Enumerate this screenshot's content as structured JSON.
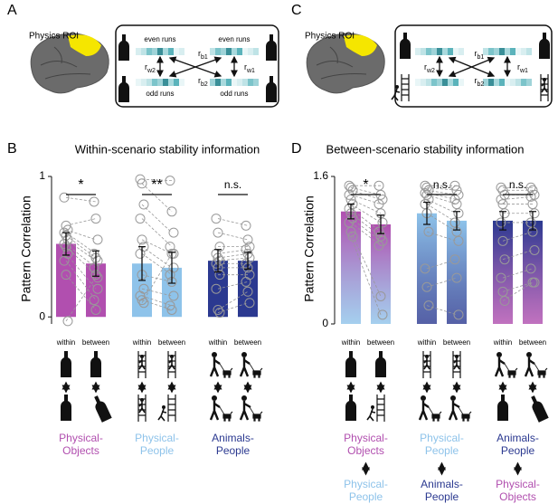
{
  "panel_labels": [
    "A",
    "B",
    "C",
    "D"
  ],
  "diagram_A": {
    "roi": "Physics ROI",
    "top_runs": [
      "even runs",
      "even runs"
    ],
    "bottom_runs": [
      "odd runs",
      "odd runs"
    ],
    "correlations": [
      {
        "base": "r",
        "sub": "w2"
      },
      {
        "base": "r",
        "sub": "b1"
      },
      {
        "base": "r",
        "sub": "b2"
      },
      {
        "base": "r",
        "sub": "w1"
      }
    ]
  },
  "diagram_C": {
    "roi": "Physics ROI",
    "correlations": [
      {
        "base": "r",
        "sub": "w2"
      },
      {
        "base": "r",
        "sub": "b1"
      },
      {
        "base": "r",
        "sub": "b2"
      },
      {
        "base": "r",
        "sub": "w1"
      }
    ]
  },
  "chart_data": [
    {
      "type": "bar",
      "title": "Within-scenario stability information",
      "ylabel": "Pattern Correlation",
      "ylim": [
        -0.05,
        1
      ],
      "yticks": [
        0,
        1
      ],
      "categories": [
        "within",
        "between"
      ],
      "groups": [
        {
          "name": "Physical-Objects",
          "color": "#b14faf",
          "significance": "*",
          "values": [
            0.52,
            0.38
          ],
          "errors": [
            0.08,
            0.09
          ],
          "points": [
            [
              0.85,
              0.65,
              0.62,
              0.6,
              0.58,
              0.55,
              0.52,
              0.5,
              0.45,
              0.4,
              0.3,
              -0.03
            ],
            [
              0.82,
              0.7,
              0.55,
              0.45,
              0.42,
              0.4,
              0.35,
              0.3,
              0.2,
              0.12,
              0.05,
              0.28
            ]
          ]
        },
        {
          "name": "Physical-People",
          "color": "#8ec3ea",
          "significance": "**",
          "values": [
            0.38,
            0.35
          ],
          "errors": [
            0.12,
            0.11
          ],
          "points": [
            [
              0.98,
              0.95,
              0.8,
              0.7,
              0.55,
              0.5,
              0.45,
              0.3,
              0.2,
              0.15,
              0.12,
              0.1
            ],
            [
              0.97,
              0.75,
              0.6,
              0.5,
              0.45,
              0.35,
              0.3,
              0.25,
              0.15,
              0.08,
              0.05,
              0.45
            ]
          ]
        },
        {
          "name": "Animals-People",
          "color": "#2b3990",
          "significance": "n.s.",
          "values": [
            0.4,
            0.4
          ],
          "errors": [
            0.08,
            0.06
          ],
          "points": [
            [
              0.7,
              0.6,
              0.5,
              0.45,
              0.42,
              0.4,
              0.38,
              0.35,
              0.3,
              0.2,
              0.05,
              0.03
            ],
            [
              0.65,
              0.55,
              0.5,
              0.48,
              0.45,
              0.42,
              0.38,
              0.35,
              0.3,
              0.25,
              0.18,
              0.1
            ]
          ]
        }
      ]
    },
    {
      "type": "bar",
      "title": "Between-scenario stability information",
      "ylabel": "Pattern Correlation",
      "ylim": [
        0,
        1.6
      ],
      "yticks": [
        0,
        1.6
      ],
      "categories": [
        "within",
        "between"
      ],
      "groups": [
        {
          "name": "Physical-Objects",
          "color": "#b14faf",
          "compare": "Physical-People",
          "compare_color": "#8ec3ea",
          "significance": "*",
          "values": [
            1.22,
            1.08
          ],
          "errors": [
            0.08,
            0.1
          ],
          "points": [
            [
              1.5,
              1.48,
              1.45,
              1.4,
              1.35,
              1.3,
              1.25,
              1.2,
              1.15,
              1.1,
              1.0,
              0.95
            ],
            [
              1.5,
              1.4,
              1.35,
              1.3,
              1.2,
              1.1,
              1.0,
              0.95,
              0.9,
              0.85,
              0.3,
              0.1
            ]
          ]
        },
        {
          "name": "Physical-People",
          "color": "#8ec3ea",
          "compare": "Animals-People",
          "compare_color": "#2b3990",
          "significance": "n.s.",
          "values": [
            1.2,
            1.12
          ],
          "errors": [
            0.12,
            0.1
          ],
          "points": [
            [
              1.5,
              1.48,
              1.45,
              1.42,
              1.4,
              1.35,
              1.3,
              1.2,
              1.0,
              0.6,
              0.4,
              0.2
            ],
            [
              1.5,
              1.45,
              1.4,
              1.35,
              1.3,
              1.2,
              1.1,
              1.0,
              0.9,
              0.7,
              0.5,
              0.1
            ]
          ]
        },
        {
          "name": "Animals-People",
          "color": "#2b3990",
          "compare": "Physical-Objects",
          "compare_color": "#b14faf",
          "significance": "n.s.",
          "values": [
            1.12,
            1.12
          ],
          "errors": [
            0.1,
            0.1
          ],
          "points": [
            [
              1.48,
              1.45,
              1.4,
              1.35,
              1.3,
              1.2,
              1.1,
              0.9,
              0.7,
              0.5,
              0.35,
              0.25
            ],
            [
              1.48,
              1.45,
              1.4,
              1.38,
              1.3,
              1.2,
              1.1,
              1.0,
              0.8,
              0.6,
              0.45,
              0.45
            ]
          ]
        }
      ]
    }
  ]
}
